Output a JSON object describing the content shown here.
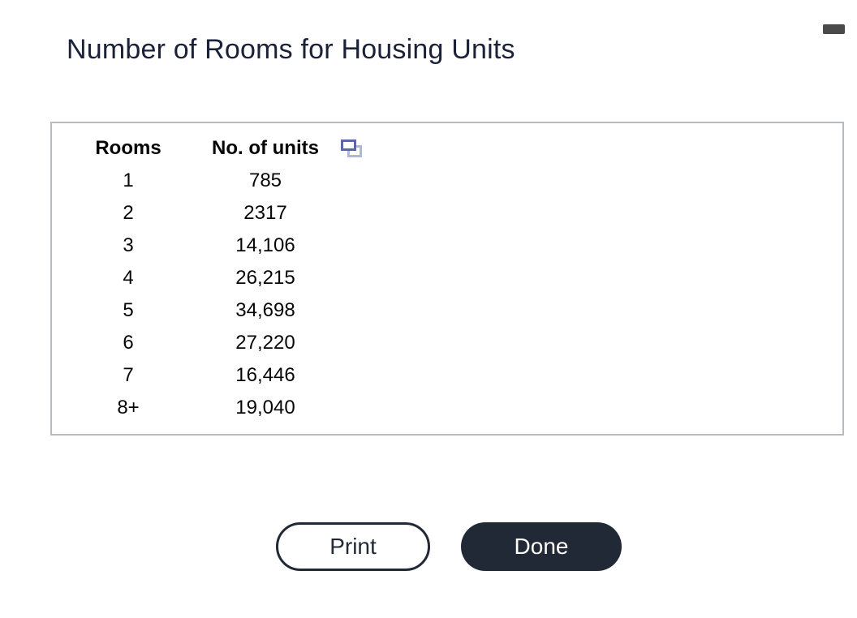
{
  "header": {
    "title": "Number of Rooms for Housing Units"
  },
  "table": {
    "columns": [
      {
        "label": "Rooms"
      },
      {
        "label": "No. of units"
      }
    ],
    "rows": [
      {
        "rooms": "1",
        "units": "785"
      },
      {
        "rooms": "2",
        "units": "2317"
      },
      {
        "rooms": "3",
        "units": "14,106"
      },
      {
        "rooms": "4",
        "units": "26,215"
      },
      {
        "rooms": "5",
        "units": "34,698"
      },
      {
        "rooms": "6",
        "units": "27,220"
      },
      {
        "rooms": "7",
        "units": "16,446"
      },
      {
        "rooms": "8+",
        "units": "19,040"
      }
    ],
    "header_icon": "copy-icon"
  },
  "buttons": {
    "print": "Print",
    "done": "Done"
  },
  "colors": {
    "title_text": "#1a2139",
    "accent_dark": "#222936",
    "panel_border": "#b9bcbe",
    "copy_icon_front": "#5a67ab",
    "copy_icon_back": "#b0b8da",
    "top_indicator": "#4a4a4a"
  }
}
